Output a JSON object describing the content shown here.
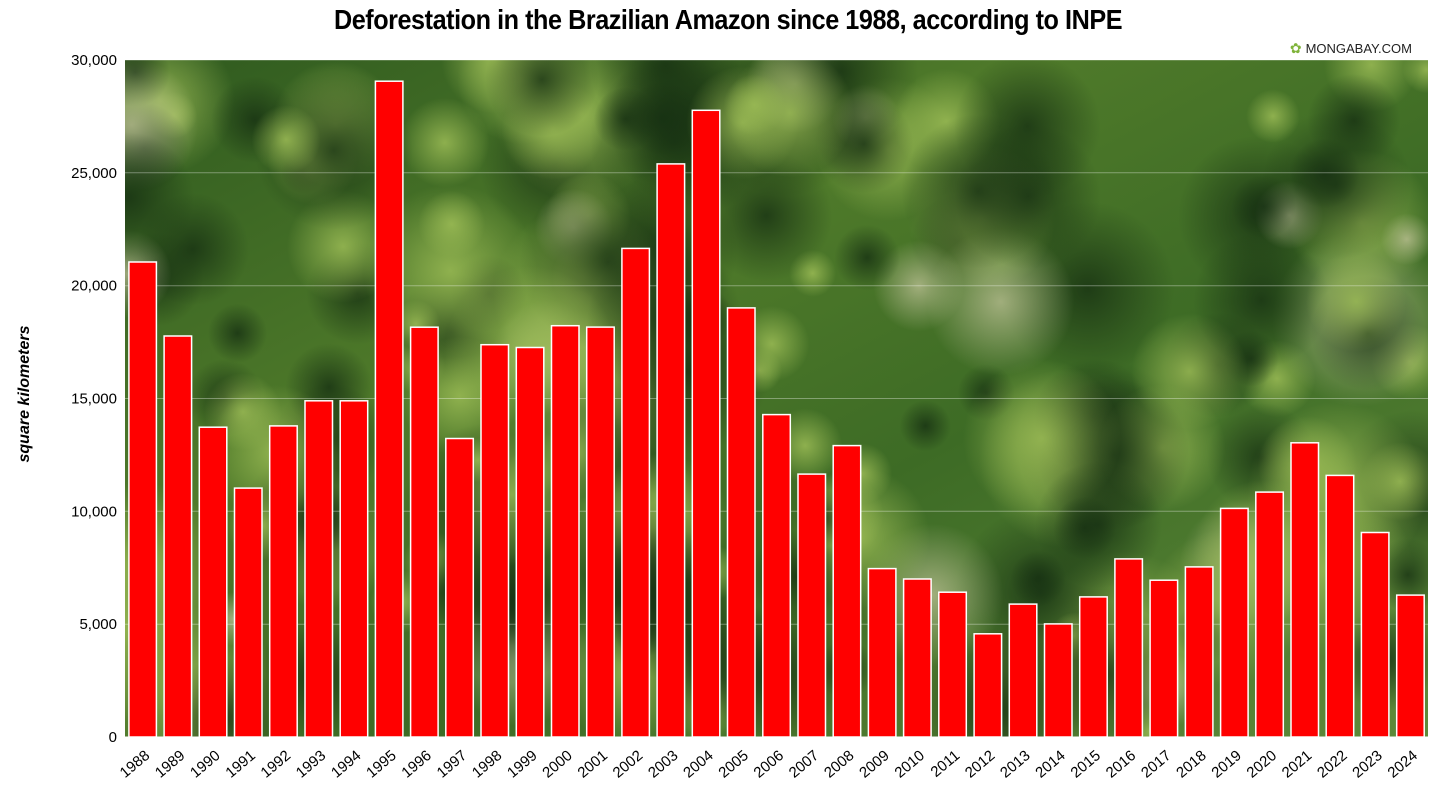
{
  "chart_data": {
    "type": "bar",
    "title": "Deforestation in the Brazilian Amazon since 1988, according to INPE",
    "ylabel": "square kilometers",
    "xlabel": "",
    "ylim": [
      0,
      30000
    ],
    "yticks": [
      0,
      5000,
      10000,
      15000,
      20000,
      25000,
      30000
    ],
    "ytick_labels": [
      "0",
      "5,000",
      "10,000",
      "15,000",
      "20,000",
      "25,000",
      "30,000"
    ],
    "grid": true,
    "bar_color": "#ff0000",
    "categories": [
      "1988",
      "1989",
      "1990",
      "1991",
      "1992",
      "1993",
      "1994",
      "1995",
      "1996",
      "1997",
      "1998",
      "1999",
      "2000",
      "2001",
      "2002",
      "2003",
      "2004",
      "2005",
      "2006",
      "2007",
      "2008",
      "2009",
      "2010",
      "2011",
      "2012",
      "2013",
      "2014",
      "2015",
      "2016",
      "2017",
      "2018",
      "2019",
      "2020",
      "2021",
      "2022",
      "2023",
      "2024"
    ],
    "values": [
      21050,
      17770,
      13730,
      11030,
      13786,
      14896,
      14896,
      29059,
      18161,
      13227,
      17383,
      17259,
      18226,
      18165,
      21651,
      25396,
      27772,
      19014,
      14286,
      11651,
      12911,
      7464,
      7000,
      6418,
      4571,
      5891,
      5012,
      6207,
      7893,
      6947,
      7536,
      10129,
      10851,
      13038,
      11594,
      9064,
      6288
    ]
  },
  "watermark": {
    "text": "MONGABAY.COM",
    "icon": "leaf-icon"
  }
}
